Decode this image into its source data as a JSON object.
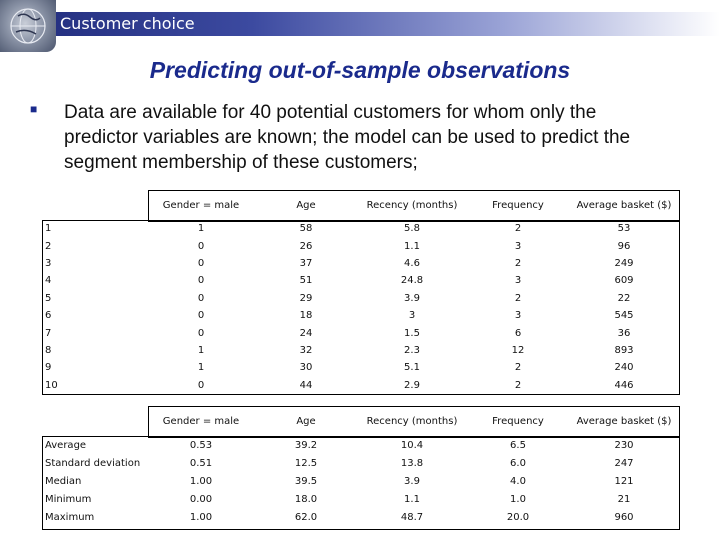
{
  "header": {
    "title": "Customer choice",
    "logo_icon": "globe-icon"
  },
  "slide": {
    "title": "Predicting out-of-sample observations",
    "bullet": "Data are available for 40 potential customers for whom only the predictor variables are known; the model can be used to predict the segment membership of these customers;"
  },
  "table1": {
    "headers": [
      "Gender = male",
      "Age",
      "Recency (months)",
      "Frequency",
      "Average basket ($)"
    ],
    "rows": [
      {
        "label": "1",
        "values": [
          "1",
          "58",
          "5.8",
          "2",
          "53"
        ]
      },
      {
        "label": "2",
        "values": [
          "0",
          "26",
          "1.1",
          "3",
          "96"
        ]
      },
      {
        "label": "3",
        "values": [
          "0",
          "37",
          "4.6",
          "2",
          "249"
        ]
      },
      {
        "label": "4",
        "values": [
          "0",
          "51",
          "24.8",
          "3",
          "609"
        ]
      },
      {
        "label": "5",
        "values": [
          "0",
          "29",
          "3.9",
          "2",
          "22"
        ]
      },
      {
        "label": "6",
        "values": [
          "0",
          "18",
          "3",
          "3",
          "545"
        ]
      },
      {
        "label": "7",
        "values": [
          "0",
          "24",
          "1.5",
          "6",
          "36"
        ]
      },
      {
        "label": "8",
        "values": [
          "1",
          "32",
          "2.3",
          "12",
          "893"
        ]
      },
      {
        "label": "9",
        "values": [
          "1",
          "30",
          "5.1",
          "2",
          "240"
        ]
      },
      {
        "label": "10",
        "values": [
          "0",
          "44",
          "2.9",
          "2",
          "446"
        ]
      }
    ]
  },
  "table2": {
    "headers": [
      "Gender = male",
      "Age",
      "Recency (months)",
      "Frequency",
      "Average basket ($)"
    ],
    "rows": [
      {
        "label": "Average",
        "values": [
          "0.53",
          "39.2",
          "10.4",
          "6.5",
          "230"
        ]
      },
      {
        "label": "Standard deviation",
        "values": [
          "0.51",
          "12.5",
          "13.8",
          "6.0",
          "247"
        ]
      },
      {
        "label": "Median",
        "values": [
          "1.00",
          "39.5",
          "3.9",
          "4.0",
          "121"
        ]
      },
      {
        "label": "Minimum",
        "values": [
          "0.00",
          "18.0",
          "1.1",
          "1.0",
          "21"
        ]
      },
      {
        "label": "Maximum",
        "values": [
          "1.00",
          "62.0",
          "48.7",
          "20.0",
          "960"
        ]
      }
    ]
  }
}
